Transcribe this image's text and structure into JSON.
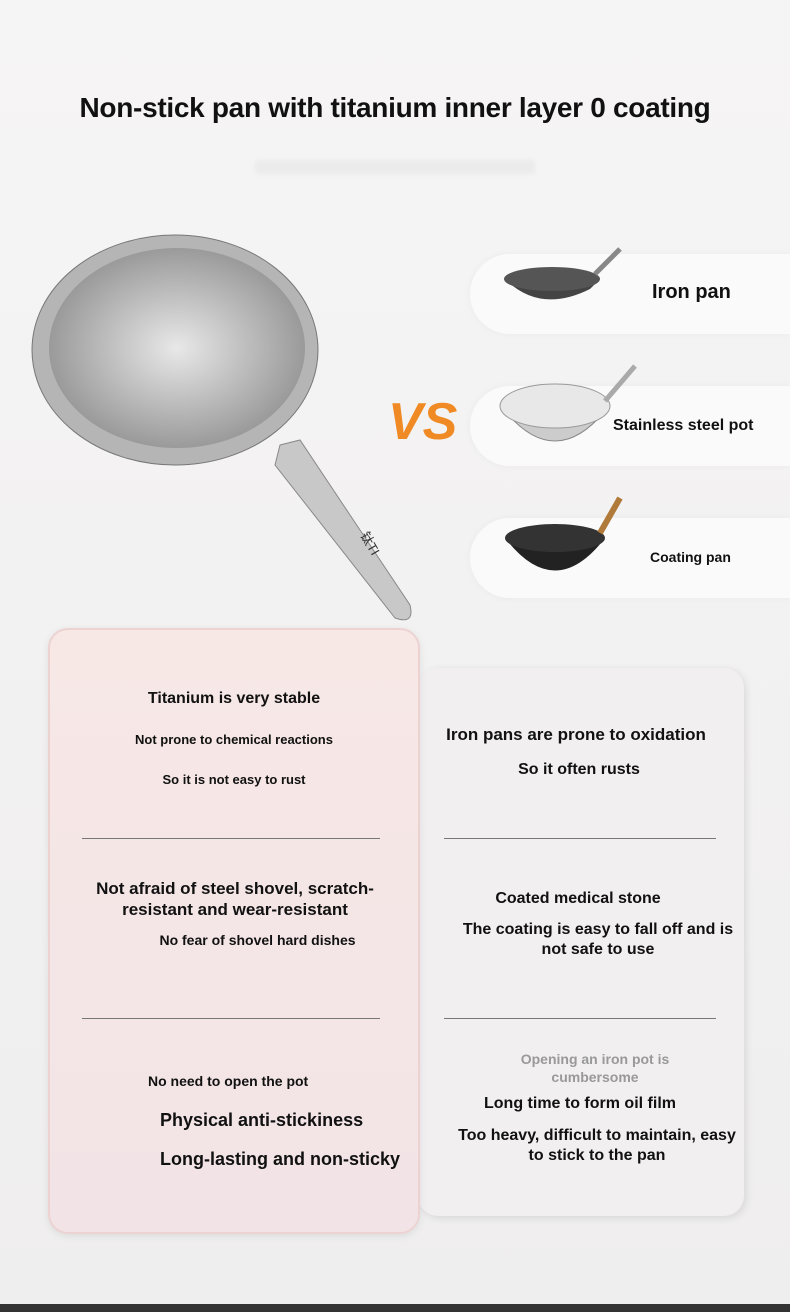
{
  "title": "Non-stick pan with titanium inner layer 0 coating",
  "vs_label": "VS",
  "pan_handle_logo": "钛TI",
  "comparisons": [
    {
      "label": "Iron pan"
    },
    {
      "label": "Stainless steel pot"
    },
    {
      "label": "Coating pan"
    }
  ],
  "left_card": {
    "s1": [
      "Titanium is very stable",
      "Not prone to chemical reactions",
      "So it is not easy to rust"
    ],
    "s2": [
      "Not afraid of steel shovel, scratch-resistant and wear-resistant",
      "No fear of shovel hard dishes"
    ],
    "s3": [
      "No need to open the pot",
      "Physical anti-stickiness",
      "Long-lasting and non-sticky"
    ]
  },
  "right_card": {
    "s1": [
      "Iron pans are prone to oxidation",
      "So it often rusts"
    ],
    "s2": [
      "Coated medical stone",
      "The coating is easy to fall off and is not safe to use"
    ],
    "s3": [
      "Opening an iron pot is cumbersome",
      "Long time to form oil film",
      "Too heavy, difficult to maintain, easy to stick to the pan"
    ]
  },
  "colors": {
    "vs": "#f08a24",
    "left_card": "#f7e8e6",
    "right_card": "#f1eff0"
  }
}
